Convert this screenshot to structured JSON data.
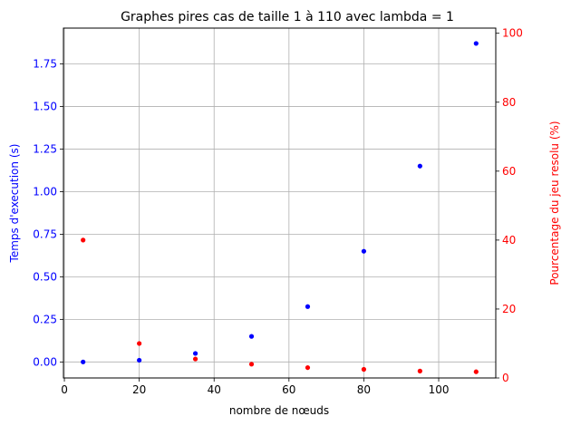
{
  "chart_data": {
    "type": "scatter",
    "title": "Graphes pires cas de taille 1 à 110 avec lambda = 1",
    "xlabel": "nombre de nœuds",
    "ylabel_left": "Temps d'execution (s)",
    "ylabel_right": "Pourcentage du jeu resolu (%)",
    "xlim": [
      -0.25,
      115.25
    ],
    "ylim_left": [
      -0.094,
      1.96
    ],
    "ylim_right": [
      0,
      101.5
    ],
    "xticks": [
      "0",
      "20",
      "40",
      "60",
      "80",
      "100"
    ],
    "yticks_left": [
      "0.00",
      "0.25",
      "0.50",
      "0.75",
      "1.00",
      "1.25",
      "1.50",
      "1.75"
    ],
    "yticks_right": [
      "0",
      "20",
      "40",
      "60",
      "80",
      "100"
    ],
    "grid": true,
    "colors": {
      "left": "#0000ff",
      "right": "#ff0000"
    },
    "series": [
      {
        "axis": "left",
        "color": "#0000ff",
        "x": [
          5,
          20,
          35,
          50,
          65,
          80,
          95,
          110
        ],
        "y": [
          0.0,
          0.01,
          0.05,
          0.15,
          0.325,
          0.65,
          1.15,
          1.87
        ]
      },
      {
        "axis": "right",
        "color": "#ff0000",
        "x": [
          5,
          20,
          35,
          50,
          65,
          80,
          95,
          110
        ],
        "y": [
          40,
          10,
          5.5,
          4,
          3,
          2.5,
          2,
          1.8
        ]
      }
    ]
  }
}
